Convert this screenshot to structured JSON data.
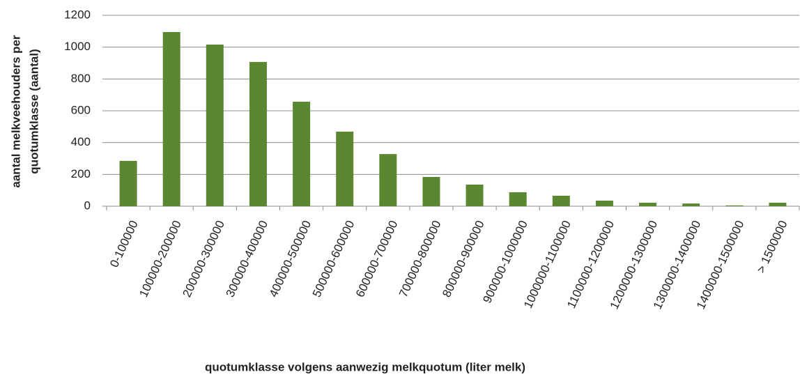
{
  "chart_data": {
    "type": "bar",
    "categories": [
      "0-100000",
      "100000-200000",
      "200000-300000",
      "300000-400000",
      "400000-500000",
      "500000-600000",
      "600000-700000",
      "700000-800000",
      "800000-900000",
      "900000-1000000",
      "1000000-1100000",
      "1100000-1200000",
      "1200000-1300000",
      "1300000-1400000",
      "1400000-1500000",
      "> 1500000"
    ],
    "values": [
      285,
      1095,
      1016,
      907,
      657,
      469,
      328,
      184,
      136,
      88,
      66,
      35,
      22,
      17,
      5,
      22
    ],
    "color": "#5b8731",
    "ylim": [
      0,
      1200
    ],
    "yticks": [
      0,
      200,
      400,
      600,
      800,
      1000,
      1200
    ],
    "grid": true,
    "x_label": "quotumklasse volgens aanwezig melkquotum (liter melk)",
    "y_label": [
      "aantal melkveehouders per",
      "quotumklasse (aantal)"
    ]
  }
}
